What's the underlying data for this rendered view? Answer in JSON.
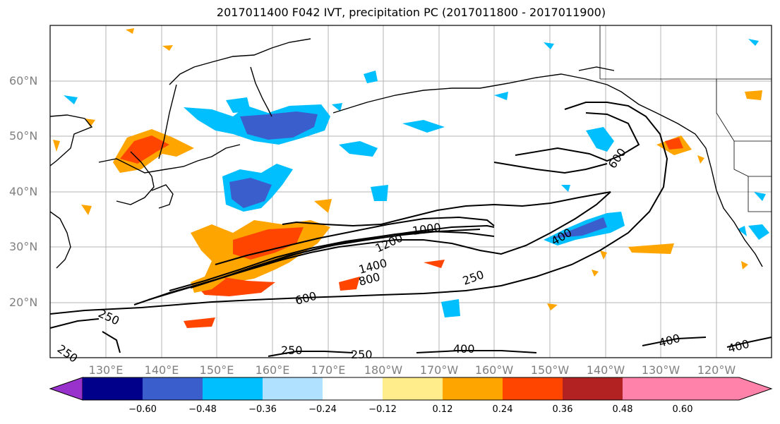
{
  "title": "2017011400 F042 IVT, precipitation PC (2017011800 - 2017011900)",
  "lat_labels": [
    "60°N",
    "50°N",
    "40°N",
    "30°N",
    "20°N"
  ],
  "lon_labels": [
    "130°E",
    "140°E",
    "150°E",
    "160°E",
    "170°E",
    "180°W",
    "170°W",
    "160°W",
    "150°W",
    "140°W",
    "130°W",
    "120°W"
  ],
  "contour_labels": [
    "250",
    "250",
    "250",
    "250",
    "400",
    "400",
    "400",
    "400",
    "600",
    "600",
    "800",
    "1000",
    "1200",
    "1400",
    "250"
  ],
  "colorbar": {
    "colors": [
      "#9932CC",
      "#00008B",
      "#3A5FCD",
      "#00BFFF",
      "#B0E2FF",
      "#FFFFFF",
      "#FFEC8B",
      "#FFA500",
      "#FF4500",
      "#B22222",
      "#FF82AB"
    ],
    "tick_labels": [
      "−0.60",
      "−0.48",
      "−0.36",
      "−0.24",
      "−0.12",
      "0.12",
      "0.24",
      "0.36",
      "0.48",
      "0.60"
    ]
  }
}
